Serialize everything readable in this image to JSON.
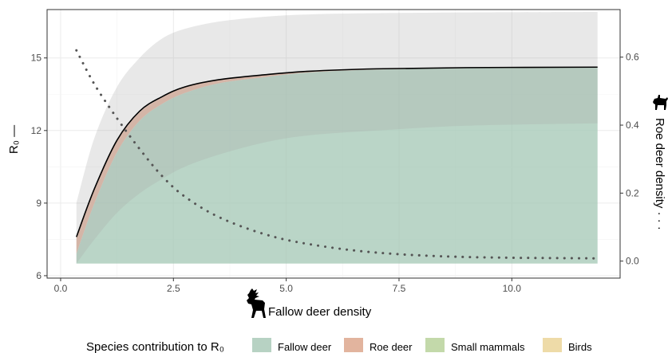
{
  "chart_data": {
    "type": "area",
    "title": "",
    "xlabel": "Fallow deer density",
    "ylabel_left": "R₀ —",
    "ylabel_right": "Roe deer density · · ·",
    "xlim": [
      -0.3,
      12.4
    ],
    "ylim_left": [
      5.9,
      17.0
    ],
    "ylim_right": [
      -0.05,
      0.74
    ],
    "x_ticks": [
      0.0,
      2.5,
      5.0,
      7.5,
      10.0
    ],
    "x_tick_labels": [
      "0.0",
      "2.5",
      "5.0",
      "7.5",
      "10.0"
    ],
    "y_left_ticks": [
      6,
      9,
      12,
      15
    ],
    "y_left_tick_labels": [
      "6",
      "9",
      "12",
      "15"
    ],
    "y_right_ticks": [
      0.0,
      0.2,
      0.4,
      0.6
    ],
    "y_right_tick_labels": [
      "0.0",
      "0.2",
      "0.4",
      "0.6"
    ],
    "grid": true,
    "x": [
      0.35,
      0.75,
      1.25,
      1.75,
      2.25,
      2.75,
      3.5,
      4.5,
      5.5,
      7.0,
      9.0,
      11.9
    ],
    "series": [
      {
        "role": "r0_line",
        "axis": "left",
        "color": "#000000",
        "values": [
          7.6,
          9.6,
          11.6,
          12.8,
          13.4,
          13.8,
          14.1,
          14.3,
          14.45,
          14.55,
          14.6,
          14.62
        ]
      },
      {
        "role": "r0_ci_upper",
        "axis": "left",
        "color": "#e8e8e8",
        "values": [
          9.0,
          11.7,
          13.8,
          15.0,
          15.8,
          16.2,
          16.5,
          16.7,
          16.8,
          16.85,
          16.88,
          16.9
        ]
      },
      {
        "role": "r0_ci_lower",
        "axis": "left",
        "values": [
          6.5,
          7.5,
          8.6,
          9.4,
          10.0,
          10.5,
          11.0,
          11.5,
          11.8,
          12.0,
          12.2,
          12.3
        ]
      },
      {
        "role": "roe_deer_density",
        "axis": "right",
        "style": "dotted",
        "color": "#555555",
        "values": [
          0.62,
          0.52,
          0.42,
          0.33,
          0.25,
          0.19,
          0.13,
          0.08,
          0.05,
          0.025,
          0.012,
          0.008
        ]
      }
    ],
    "stacks": [
      {
        "name": "Fallow deer",
        "color": "#a3c7b4",
        "values": [
          6.9,
          9.0,
          11.1,
          12.4,
          13.1,
          13.55,
          13.95,
          14.2,
          14.4,
          14.52,
          14.58,
          14.6
        ]
      },
      {
        "name": "Roe deer",
        "color": "#e2b49e",
        "values": [
          7.55,
          9.55,
          11.55,
          12.75,
          13.37,
          13.78,
          14.09,
          14.29,
          14.44,
          14.54,
          14.59,
          14.61
        ]
      }
    ],
    "baseline": 6.5,
    "legend": {
      "title": "Species contribution to R₀",
      "position": "bottom",
      "items": [
        {
          "name": "Fallow deer",
          "color": "#b7d2c3"
        },
        {
          "name": "Roe deer",
          "color": "#e2b49e"
        },
        {
          "name": "Small mammals",
          "color": "#c3d9aa"
        },
        {
          "name": "Birds",
          "color": "#eedba8"
        }
      ]
    },
    "icons": {
      "x_axis": "fallow-deer-silhouette",
      "y_right_axis": "roe-deer-silhouette"
    }
  }
}
